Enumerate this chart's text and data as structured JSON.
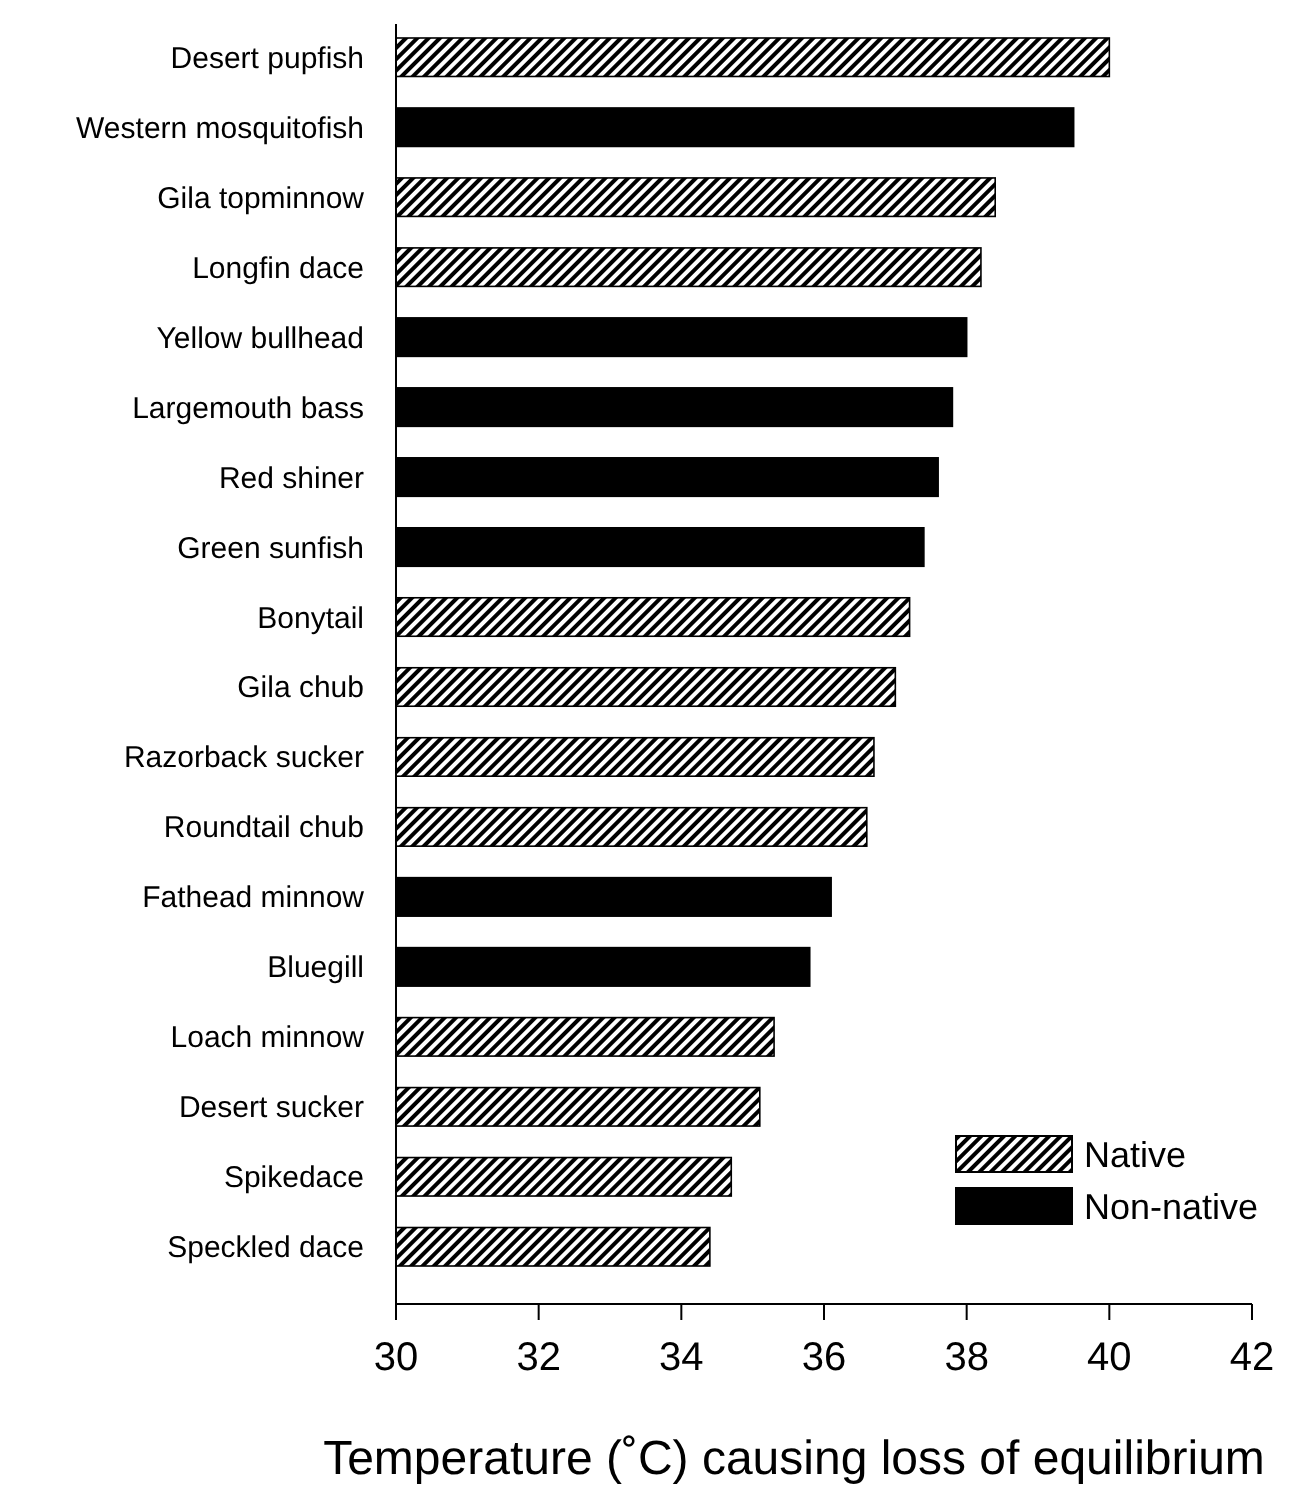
{
  "chart_data": {
    "type": "bar",
    "orientation": "horizontal",
    "xlabel": "Temperature (˚C) causing loss of equilibrium",
    "categories": [
      "Desert pupfish",
      "Western mosquitofish",
      "Gila topminnow",
      "Longfin dace",
      "Yellow bullhead",
      "Largemouth bass",
      "Red shiner",
      "Green sunfish",
      "Bonytail",
      "Gila chub",
      "Razorback sucker",
      "Roundtail chub",
      "Fathead minnow",
      "Bluegill",
      "Loach minnow",
      "Desert sucker",
      "Spikedace",
      "Speckled dace"
    ],
    "series": [
      {
        "name": "Native",
        "color": "#000000",
        "values": [
          40.0,
          null,
          38.4,
          38.2,
          null,
          null,
          null,
          null,
          37.2,
          37.0,
          36.7,
          36.6,
          null,
          null,
          35.3,
          35.1,
          34.7,
          34.4
        ]
      },
      {
        "name": "Non-native",
        "color": "#000000",
        "values": [
          null,
          39.5,
          null,
          null,
          38.0,
          37.8,
          37.6,
          37.4,
          null,
          null,
          null,
          null,
          36.1,
          35.8,
          null,
          null,
          null,
          null
        ]
      }
    ],
    "xlim": [
      30,
      42
    ],
    "xticks": [
      30,
      32,
      34,
      36,
      38,
      40,
      42
    ],
    "grid": false,
    "legend": "bottom right"
  }
}
